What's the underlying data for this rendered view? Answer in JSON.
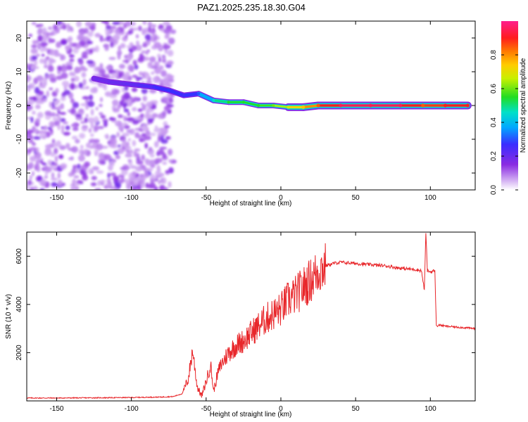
{
  "title": "PAZ1.2025.235.18.30.G04",
  "colors": {
    "snr_line": "#e8262a",
    "spectrum_track": "#ff1e1e",
    "speckle": "#8a2be2"
  },
  "chart_data": [
    {
      "type": "heatmap",
      "title": "PAZ1.2025.235.18.30.G04",
      "xlabel": "Height of straight line (km)",
      "ylabel": "Frequency (Hz)",
      "xlim": [
        -170,
        130
      ],
      "ylim": [
        -25,
        25
      ],
      "xticks": [
        -150,
        -100,
        -50,
        0,
        50,
        100
      ],
      "yticks": [
        -20,
        -10,
        0,
        10,
        20
      ],
      "colorbar": {
        "label": "Normalized spectral amplitude",
        "range": [
          0,
          1
        ],
        "ticks": [
          0.0,
          0.2,
          0.4,
          0.6,
          0.8
        ],
        "tick_labels": [
          "0.0",
          "0.2",
          "0.4",
          "0.6",
          "0.8"
        ],
        "colormap": "rainbow (white-violet-blue-cyan-green-yellow-red-magenta)"
      },
      "noise_region_x": [
        -170,
        -72
      ],
      "signal_track": [
        {
          "x": -125,
          "freq": 8,
          "amp": 0.18
        },
        {
          "x": -115,
          "freq": 7,
          "amp": 0.2
        },
        {
          "x": -105,
          "freq": 6.5,
          "amp": 0.2
        },
        {
          "x": -95,
          "freq": 6,
          "amp": 0.22
        },
        {
          "x": -85,
          "freq": 5.5,
          "amp": 0.25
        },
        {
          "x": -75,
          "freq": 4.5,
          "amp": 0.28
        },
        {
          "x": -65,
          "freq": 3,
          "amp": 0.25
        },
        {
          "x": -55,
          "freq": 3.5,
          "amp": 0.3
        },
        {
          "x": -45,
          "freq": 1.5,
          "amp": 0.45
        },
        {
          "x": -35,
          "freq": 1,
          "amp": 0.55
        },
        {
          "x": -25,
          "freq": 1,
          "amp": 0.55
        },
        {
          "x": -15,
          "freq": 0,
          "amp": 0.55
        },
        {
          "x": -5,
          "freq": 0,
          "amp": 0.6
        },
        {
          "x": 5,
          "freq": -0.5,
          "amp": 0.7
        },
        {
          "x": 15,
          "freq": -0.5,
          "amp": 0.75
        },
        {
          "x": 25,
          "freq": 0,
          "amp": 0.85
        },
        {
          "x": 40,
          "freq": 0,
          "amp": 0.95
        },
        {
          "x": 60,
          "freq": 0,
          "amp": 0.95
        },
        {
          "x": 80,
          "freq": 0,
          "amp": 0.95
        },
        {
          "x": 95,
          "freq": 0,
          "amp": 0.85
        },
        {
          "x": 110,
          "freq": 0,
          "amp": 0.9
        },
        {
          "x": 125,
          "freq": 0,
          "amp": 0.9
        }
      ]
    },
    {
      "type": "line",
      "xlabel": "Height of straight line (km)",
      "ylabel": "SNR (10 * v/v)",
      "xlim": [
        -170,
        130
      ],
      "ylim": [
        0,
        7000
      ],
      "xticks": [
        -150,
        -100,
        -50,
        0,
        50,
        100
      ],
      "yticks": [
        2000,
        4000,
        6000
      ],
      "x": [
        -170,
        -150,
        -120,
        -100,
        -80,
        -72,
        -66,
        -62,
        -59,
        -56,
        -53,
        -50,
        -47,
        -45,
        -42,
        -40,
        -35,
        -30,
        -25,
        -20,
        -15,
        -10,
        -5,
        0,
        5,
        10,
        15,
        20,
        25,
        30,
        35,
        40,
        50,
        60,
        70,
        80,
        90,
        94,
        96,
        97,
        98,
        100,
        103,
        104,
        106,
        110,
        120,
        130
      ],
      "values": [
        120,
        120,
        130,
        140,
        160,
        180,
        300,
        900,
        2100,
        600,
        200,
        800,
        1500,
        400,
        1200,
        1500,
        2000,
        2300,
        2500,
        2800,
        3100,
        3400,
        3600,
        3800,
        4200,
        4400,
        4700,
        5000,
        5400,
        5600,
        5700,
        5750,
        5700,
        5650,
        5600,
        5500,
        5450,
        5400,
        4600,
        7000,
        5400,
        5350,
        5400,
        3100,
        3150,
        3100,
        3050,
        3000
      ]
    }
  ]
}
